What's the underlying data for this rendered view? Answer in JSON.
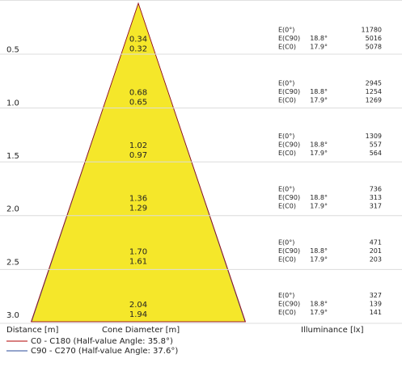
{
  "chart_data": {
    "type": "cone-diagram",
    "footer": {
      "distance_label": "Distance [m]",
      "diameter_label": "Cone Diameter [m]",
      "illuminance_label": "Illuminance [lx]"
    },
    "legend": [
      {
        "name": "C0 - C180 (Half-value Angle: 35.8°)",
        "color": "#b00000"
      },
      {
        "name": "C90 - C270 (Half-value Angle: 37.6°)",
        "color": "#2a4a9a"
      }
    ],
    "cone_color": "#f5e72a",
    "rows": [
      {
        "distance": "0.5",
        "d_c0": "0.34",
        "d_c90": "0.32",
        "e": [
          {
            "label": "E(0°)",
            "angle": "",
            "value": "11780"
          },
          {
            "label": "E(C90)",
            "angle": "18.8°",
            "value": "5016"
          },
          {
            "label": "E(C0)",
            "angle": "17.9°",
            "value": "5078"
          }
        ]
      },
      {
        "distance": "1.0",
        "d_c0": "0.68",
        "d_c90": "0.65",
        "e": [
          {
            "label": "E(0°)",
            "angle": "",
            "value": "2945"
          },
          {
            "label": "E(C90)",
            "angle": "18.8°",
            "value": "1254"
          },
          {
            "label": "E(C0)",
            "angle": "17.9°",
            "value": "1269"
          }
        ]
      },
      {
        "distance": "1.5",
        "d_c0": "1.02",
        "d_c90": "0.97",
        "e": [
          {
            "label": "E(0°)",
            "angle": "",
            "value": "1309"
          },
          {
            "label": "E(C90)",
            "angle": "18.8°",
            "value": "557"
          },
          {
            "label": "E(C0)",
            "angle": "17.9°",
            "value": "564"
          }
        ]
      },
      {
        "distance": "2.0",
        "d_c0": "1.36",
        "d_c90": "1.29",
        "e": [
          {
            "label": "E(0°)",
            "angle": "",
            "value": "736"
          },
          {
            "label": "E(C90)",
            "angle": "18.8°",
            "value": "313"
          },
          {
            "label": "E(C0)",
            "angle": "17.9°",
            "value": "317"
          }
        ]
      },
      {
        "distance": "2.5",
        "d_c0": "1.70",
        "d_c90": "1.61",
        "e": [
          {
            "label": "E(0°)",
            "angle": "",
            "value": "471"
          },
          {
            "label": "E(C90)",
            "angle": "18.8°",
            "value": "201"
          },
          {
            "label": "E(C0)",
            "angle": "17.9°",
            "value": "203"
          }
        ]
      },
      {
        "distance": "3.0",
        "d_c0": "2.04",
        "d_c90": "1.94",
        "e": [
          {
            "label": "E(0°)",
            "angle": "",
            "value": "327"
          },
          {
            "label": "E(C90)",
            "angle": "18.8°",
            "value": "139"
          },
          {
            "label": "E(C0)",
            "angle": "17.9°",
            "value": "141"
          }
        ]
      }
    ]
  }
}
